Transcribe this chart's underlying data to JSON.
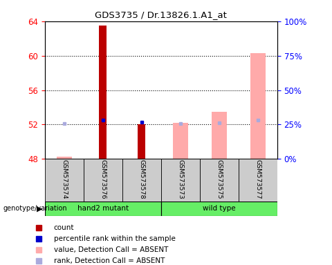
{
  "title": "GDS3735 / Dr.13826.1.A1_at",
  "samples": [
    "GSM573574",
    "GSM573576",
    "GSM573578",
    "GSM573573",
    "GSM573575",
    "GSM573577"
  ],
  "ylim_left": [
    48,
    64
  ],
  "ylim_right": [
    0,
    100
  ],
  "yticks_left": [
    48,
    52,
    56,
    60,
    64
  ],
  "yticks_right": [
    0,
    25,
    50,
    75,
    100
  ],
  "ytick_right_labels": [
    "0%",
    "25%",
    "50%",
    "75%",
    "100%"
  ],
  "bar_baseline": 48,
  "count_values": [
    null,
    63.5,
    null,
    null,
    null,
    null
  ],
  "count_values_down_top": [
    null,
    null,
    52.0,
    null,
    null,
    null
  ],
  "count_values_down_bot": [
    null,
    null,
    48.0,
    null,
    null,
    null
  ],
  "rank_present": [
    null,
    52.5,
    52.3,
    null,
    null,
    null
  ],
  "absent_value": [
    48.3,
    null,
    null,
    52.2,
    53.5,
    60.3
  ],
  "rank_absent": [
    52.1,
    null,
    null,
    52.1,
    52.2,
    52.5
  ],
  "color_count": "#bb0000",
  "color_rank_present": "#0000cc",
  "color_absent_value": "#ffaaaa",
  "color_rank_absent": "#aaaadd",
  "grid_yticks": [
    52,
    56,
    60
  ],
  "bar_width": 0.35,
  "legend_items": [
    {
      "label": "count",
      "color": "#bb0000"
    },
    {
      "label": "percentile rank within the sample",
      "color": "#0000cc"
    },
    {
      "label": "value, Detection Call = ABSENT",
      "color": "#ffaaaa"
    },
    {
      "label": "rank, Detection Call = ABSENT",
      "color": "#aaaadd"
    }
  ],
  "group_green": "#66ee66",
  "sample_gray": "#cccccc"
}
